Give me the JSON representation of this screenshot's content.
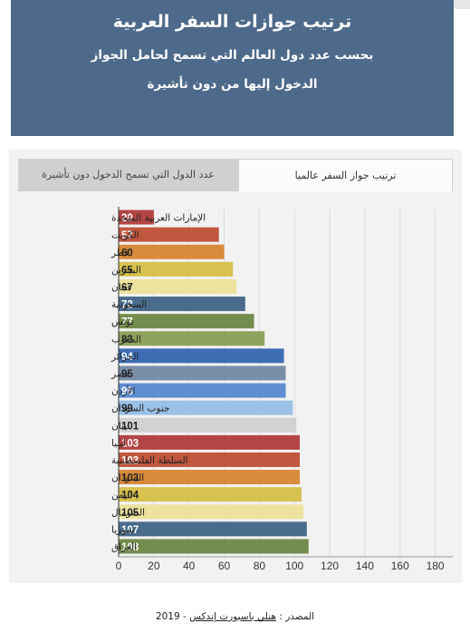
{
  "header": {
    "title": "ترتيب جوازات السفر العربية",
    "subtitle_line1": "بحسب عدد دول العالم التي تسمح لحامل الجواز",
    "subtitle_line2": "الدخول إليها من دون تأشيرة"
  },
  "tabs": [
    {
      "label": "ترتيب جواز السفر عالميا",
      "active": true
    },
    {
      "label": "عدد الدول التي تسمح الدخول دون تأشيرة",
      "active": false
    }
  ],
  "source": {
    "prefix": "المصدر :",
    "link": "هنلي باسبورت إندكس",
    "suffix": "- 2019"
  },
  "chart_data": {
    "type": "bar",
    "orientation": "horizontal",
    "categories": [
      "الإمارات العربية المتحدة",
      "الكويت",
      "قطر",
      "البحرين",
      "عمان",
      "السعودية",
      "تونس",
      "المغرب",
      "الجزائر",
      "مصر",
      "الأردن",
      "جنوب السودان",
      "لبنان",
      "ليبيا",
      "السلطة الفلسطينية",
      "السودان",
      "اليمن",
      "الصومال",
      "سوريا",
      "العراق"
    ],
    "values": [
      20,
      57,
      60,
      65,
      67,
      72,
      77,
      83,
      94,
      95,
      95,
      99,
      101,
      103,
      103,
      103,
      104,
      105,
      107,
      108
    ],
    "value_labels": [
      "20",
      "57",
      "60",
      "65",
      "67",
      "72",
      "77",
      "83",
      "94",
      "95",
      "95",
      "99",
      "101",
      "103",
      "103",
      "103",
      "104",
      "105",
      "107",
      "108"
    ],
    "colors": [
      "#b44545",
      "#c0573e",
      "#d98b3c",
      "#d8c24f",
      "#ede29e",
      "#496b8c",
      "#748c4d",
      "#8fa25d",
      "#3e6db4",
      "#7a8ea8",
      "#5f8ed3",
      "#9cc1e6",
      "#d2d2d2",
      "#b44545",
      "#c0573e",
      "#d98b3c",
      "#d8c24f",
      "#ede29e",
      "#496b8c",
      "#748c4d"
    ],
    "dark_text": [
      false,
      false,
      true,
      true,
      true,
      false,
      false,
      true,
      false,
      true,
      false,
      true,
      true,
      false,
      false,
      true,
      true,
      true,
      false,
      false
    ],
    "xlim": [
      0,
      190
    ],
    "xticks": [
      0,
      20,
      40,
      60,
      80,
      100,
      120,
      140,
      160,
      180
    ],
    "vertical_gridlines": true
  }
}
